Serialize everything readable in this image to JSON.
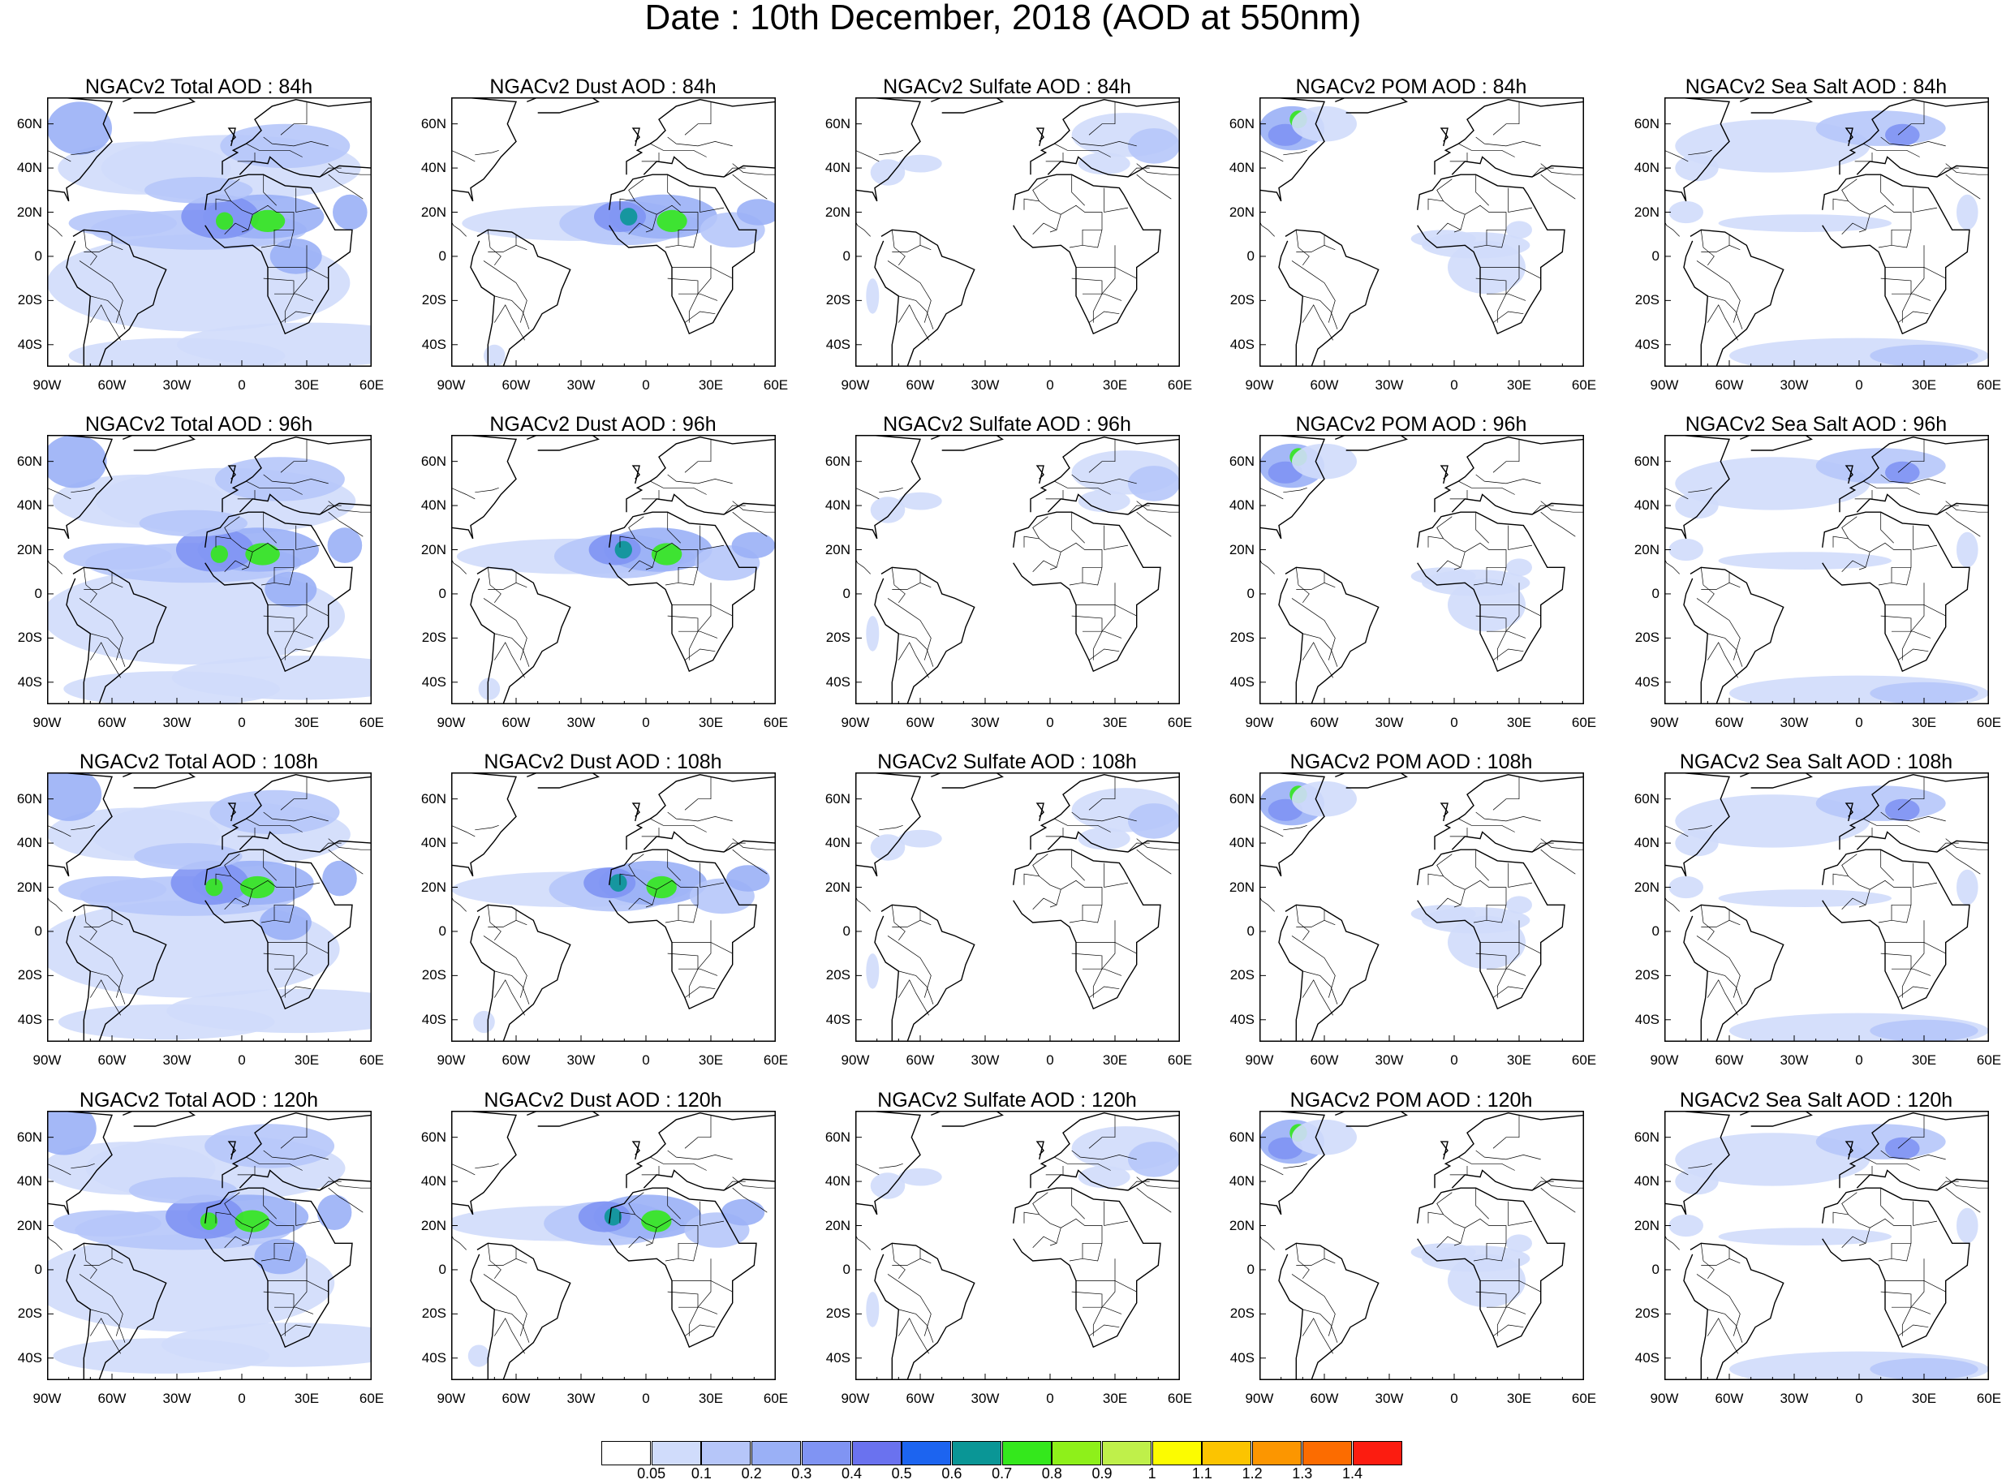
{
  "title": "Date : 10th December, 2018 (AOD at 550nm)",
  "map": {
    "lat_labels": [
      "60N",
      "40N",
      "20N",
      "0",
      "20S",
      "40S"
    ],
    "lon_labels": [
      "90W",
      "60W",
      "30W",
      "0",
      "30E",
      "60E"
    ]
  },
  "rows": [
    {
      "forecast": "84h",
      "panels": [
        {
          "label": "NGACv2 Total AOD : 84h",
          "species": "total"
        },
        {
          "label": "NGACv2 Dust AOD : 84h",
          "species": "dust"
        },
        {
          "label": "NGACv2 Sulfate AOD : 84h",
          "species": "sulfate"
        },
        {
          "label": "NGACv2 POM AOD : 84h",
          "species": "pom"
        },
        {
          "label": "NGACv2 Sea Salt AOD : 84h",
          "species": "seasalt"
        }
      ]
    },
    {
      "forecast": "96h",
      "panels": [
        {
          "label": "NGACv2 Total AOD : 96h",
          "species": "total"
        },
        {
          "label": "NGACv2 Dust AOD : 96h",
          "species": "dust"
        },
        {
          "label": "NGACv2 Sulfate AOD : 96h",
          "species": "sulfate"
        },
        {
          "label": "NGACv2 POM AOD : 96h",
          "species": "pom"
        },
        {
          "label": "NGACv2 Sea Salt AOD : 96h",
          "species": "seasalt"
        }
      ]
    },
    {
      "forecast": "108h",
      "panels": [
        {
          "label": "NGACv2 Total AOD : 108h",
          "species": "total"
        },
        {
          "label": "NGACv2 Dust AOD : 108h",
          "species": "dust"
        },
        {
          "label": "NGACv2 Sulfate AOD : 108h",
          "species": "sulfate"
        },
        {
          "label": "NGACv2 POM AOD : 108h",
          "species": "pom"
        },
        {
          "label": "NGACv2 Sea Salt AOD : 108h",
          "species": "seasalt"
        }
      ]
    },
    {
      "forecast": "120h",
      "panels": [
        {
          "label": "NGACv2 Total AOD : 120h",
          "species": "total"
        },
        {
          "label": "NGACv2 Dust AOD : 120h",
          "species": "dust"
        },
        {
          "label": "NGACv2 Sulfate AOD : 120h",
          "species": "sulfate"
        },
        {
          "label": "NGACv2 POM AOD : 120h",
          "species": "pom"
        },
        {
          "label": "NGACv2 Sea Salt  AOD : 120h",
          "species": "seasalt"
        }
      ]
    }
  ],
  "colorbar": {
    "labels": [
      "0.05",
      "0.1",
      "0.2",
      "0.3",
      "0.4",
      "0.5",
      "0.6",
      "0.7",
      "0.8",
      "0.9",
      "1",
      "1.1",
      "1.2",
      "1.3",
      "1.4"
    ],
    "colors": [
      "#ffffff",
      "#d0dcfb",
      "#b6c6f9",
      "#9ab0f6",
      "#8094f3",
      "#6a72ef",
      "#1c64f0",
      "#0a9696",
      "#34e81c",
      "#8ef01a",
      "#bff04a",
      "#fcfc00",
      "#fcc400",
      "#fc9600",
      "#fc6c00",
      "#fc1c10"
    ]
  }
}
